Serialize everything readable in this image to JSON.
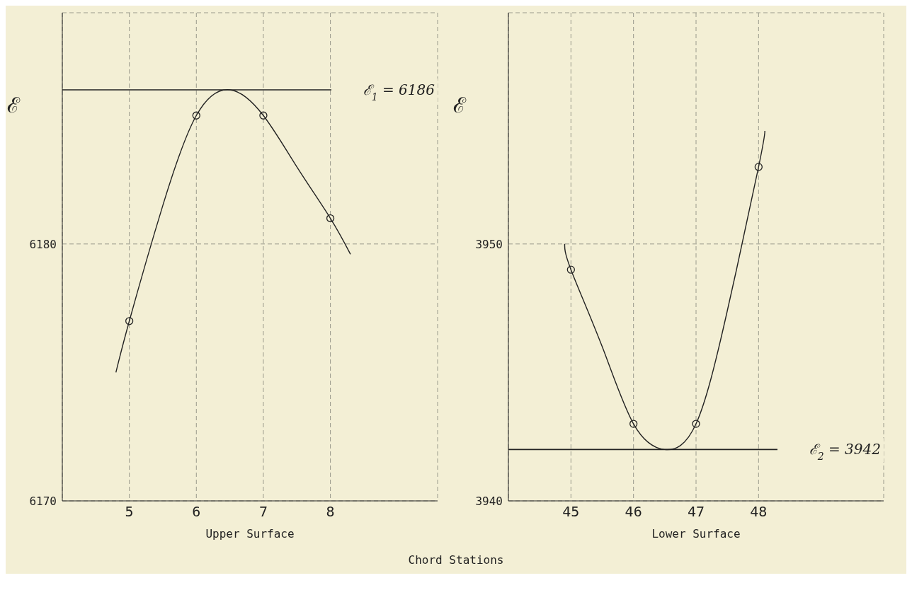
{
  "chart_data": [
    {
      "type": "line",
      "xlabel": "Upper Surface",
      "ylabel": "ℰ",
      "xlim": [
        4,
        9.6
      ],
      "xticks": [
        5,
        6,
        7,
        8
      ],
      "ylim": [
        6170,
        6189
      ],
      "yticks": [
        6170,
        6180
      ],
      "grid": true,
      "annotations": [
        "Chord Stations"
      ],
      "ref_lines": [
        {
          "axis": "y",
          "value": 6186,
          "label": "ℰ$_{1}$ = 6186",
          "color": "#222222"
        }
      ],
      "series": [
        {
          "color": "#222222",
          "x": [
            4.8,
            5,
            5.5,
            6,
            6.5,
            7,
            7.5,
            8,
            8.3
          ],
          "values": [
            6175,
            6177,
            6181.5,
            6185,
            6186,
            6185,
            6183,
            6181,
            6179.6
          ]
        },
        {
          "type": "scatter",
          "color": "#222222",
          "marker": "circle",
          "x": [
            5,
            6,
            7,
            8
          ],
          "values": [
            6177,
            6185,
            6185,
            6181
          ]
        }
      ]
    },
    {
      "type": "line",
      "xlabel": "Lower Surface",
      "ylabel": "ℰ",
      "xlim": [
        44,
        50
      ],
      "xticks": [
        45,
        46,
        47,
        48
      ],
      "ylim": [
        3940,
        3959
      ],
      "yticks": [
        3940,
        3950
      ],
      "grid": true,
      "ref_lines": [
        {
          "axis": "y",
          "value": 3942,
          "label": "ℰ$_{2}$ = 3942",
          "color": "#222222"
        }
      ],
      "series": [
        {
          "color": "#222222",
          "x": [
            44.9,
            45,
            45.5,
            46,
            46.5,
            47,
            47.5,
            48,
            48.1
          ],
          "values": [
            3950,
            3949,
            3946,
            3943,
            3942,
            3943,
            3947.4,
            3953,
            3954.4
          ]
        },
        {
          "type": "scatter",
          "color": "#222222",
          "marker": "circle",
          "x": [
            45,
            46,
            47,
            48
          ],
          "values": [
            3949,
            3943,
            3943,
            3953
          ]
        }
      ]
    }
  ]
}
